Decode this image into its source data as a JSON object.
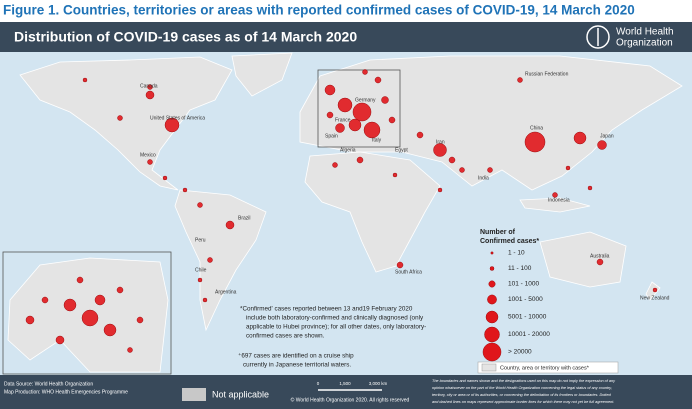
{
  "figure_title": "Figure 1. Countries, territories or areas with reported confirmed cases of COVID-19, 14 March 2020",
  "header": {
    "title": "Distribution of COVID-19  cases as of 14 March 2020",
    "logo_lines": [
      "World Health",
      "Organization"
    ]
  },
  "country_labels": [
    "Canada",
    "United States of America",
    "Mexico",
    "Brazil",
    "Argentina",
    "Chile",
    "Peru",
    "Russian Federation",
    "China",
    "Iran",
    "India",
    "Japan",
    "Australia",
    "South Africa",
    "Egypt",
    "Algeria",
    "Italy",
    "Spain",
    "France",
    "Germany",
    "Indonesia",
    "New Zealand"
  ],
  "legend": {
    "title_lines": [
      "Number of",
      "Confirmed cases*"
    ],
    "items": [
      "1 - 10",
      "11 - 100",
      "101 - 1000",
      "1001 - 5000",
      "5001 - 10000",
      "10001 - 20000",
      "> 20000"
    ],
    "country_note": "Country, area or territory with cases*"
  },
  "notes": {
    "confirmed_lines": [
      "*Confirmed' cases reported between 13 and19 February 2020",
      "include both laboratory-confirmed and clinically diagnosed (only",
      "applicable to Hubei province); for all other dates, only laboratory-",
      "confirmed cases are shown."
    ],
    "cruise_lines": [
      "⁺697 cases are identified on a cruise ship",
      "currently in Japanese territorial waters."
    ]
  },
  "footer": {
    "source_lines": [
      "Data Source: World Health Organization",
      "Map Production: WHO Health Emergencies Programme"
    ],
    "not_applicable": "Not applicable",
    "scale_labels": [
      "0",
      "1,500",
      "3,000 km"
    ],
    "copyright": "© World Health Organization 2020. All rights reserved",
    "disclaimer_lines": [
      "The boundaries and names shown and the designations used on this map do not imply the expression of any",
      "opinion whatsoever on the part of the World Health Organization concerning the legal status of any country,",
      "territory, city or area or of its authorities, or concerning the delimitation of its frontiers or boundaries. Dotted",
      "and dashed lines on maps represent approximate border lines for which there may not yet be full agreement."
    ]
  }
}
